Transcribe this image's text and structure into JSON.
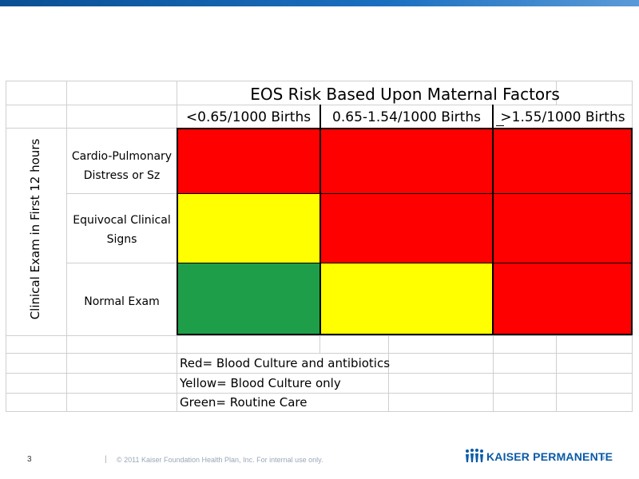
{
  "table": {
    "title": "EOS Risk Based Upon Maternal Factors",
    "columns": [
      "<0.65/1000 Births",
      "0.65-1.54/1000 Births",
      ">1.55/1000 Births"
    ],
    "row_axis_label": "Clinical Exam in First 12 hours",
    "rows": [
      {
        "label_line1": "Cardio-Pulmonary",
        "label_line2": "Distress or Sz",
        "cells": [
          "red",
          "red",
          "red"
        ]
      },
      {
        "label_line1": "Equivocal Clinical",
        "label_line2": "Signs",
        "cells": [
          "yellow",
          "red",
          "red"
        ]
      },
      {
        "label_line1": "Normal Exam",
        "label_line2": "",
        "cells": [
          "green",
          "yellow",
          "red"
        ]
      }
    ],
    "legend": [
      "Red= Blood Culture and antibiotics",
      "Yellow= Blood Culture only",
      "Green= Routine Care"
    ]
  },
  "colors": {
    "red": "#ff0000",
    "yellow": "#ffff00",
    "green": "#1f9e4a"
  },
  "footer": {
    "page_number": "3",
    "copyright": "© 2011 Kaiser Foundation Health Plan, Inc. For internal use only.",
    "brand": "KAISER PERMANENTE",
    "brand_mark": "®"
  }
}
